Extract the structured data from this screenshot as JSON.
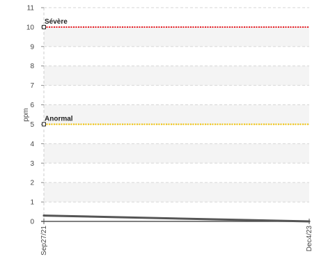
{
  "chart_data": {
    "type": "line",
    "title": "",
    "xlabel": "",
    "ylabel": "ppm",
    "ylim": [
      0,
      11
    ],
    "yticks": [
      0,
      1,
      2,
      3,
      4,
      5,
      6,
      7,
      8,
      9,
      10,
      11
    ],
    "x": [
      "Sep27/21",
      "Dec4/23"
    ],
    "x_tick_labels": [
      "Sep27/21",
      "Dec4/23"
    ],
    "series": [
      {
        "values": [
          0.3,
          0.0
        ],
        "color": "#555555"
      }
    ],
    "thresholds": [
      {
        "label": "Sévère",
        "value": 10,
        "color": "#e8141c"
      },
      {
        "label": "Anormal",
        "value": 5,
        "color": "#f2c200"
      }
    ],
    "grid": true,
    "alternating_bands": true
  }
}
